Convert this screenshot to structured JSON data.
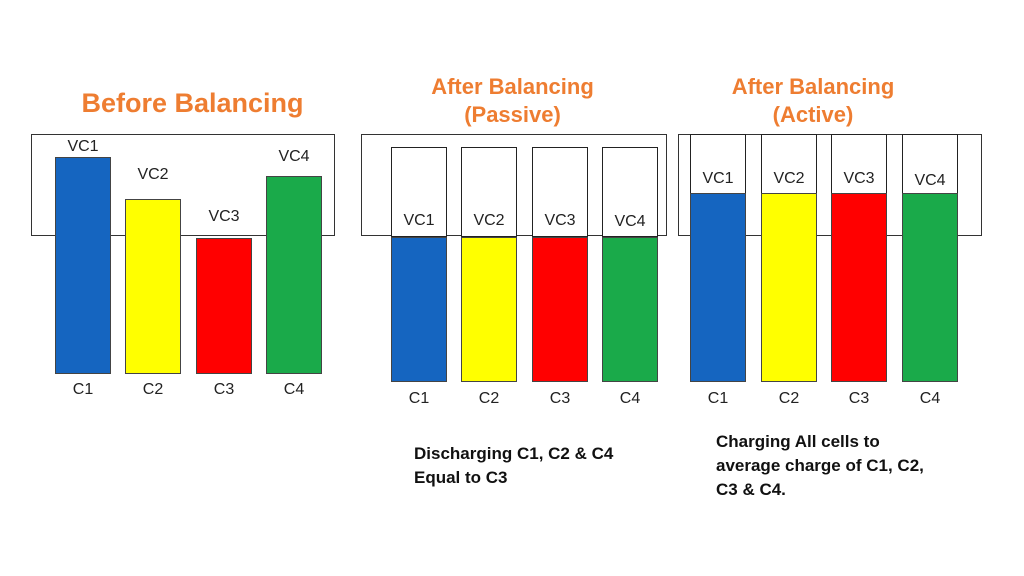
{
  "panels": {
    "before": {
      "title": "Before Balancing"
    },
    "passive": {
      "title_line1": "After Balancing",
      "title_line2": "(Passive)",
      "caption_line1": "Discharging C1, C2 & C4",
      "caption_line2": "Equal to C3"
    },
    "active": {
      "title_line1": "After Balancing",
      "title_line2": "(Active)",
      "caption_line1": "Charging All cells to",
      "caption_line2": "average charge of C1, C2,",
      "caption_line3": "C3 & C4."
    }
  },
  "cells": [
    {
      "cell": "C1",
      "voltage_label": "VC1",
      "color": "#1565c0"
    },
    {
      "cell": "C2",
      "voltage_label": "VC2",
      "color": "#ffff00"
    },
    {
      "cell": "C3",
      "voltage_label": "VC3",
      "color": "#ff0000"
    },
    {
      "cell": "C4",
      "voltage_label": "VC4",
      "color": "#1aaa4a"
    }
  ],
  "colors": {
    "title": "#ee7d31",
    "frame": "#333333"
  }
}
